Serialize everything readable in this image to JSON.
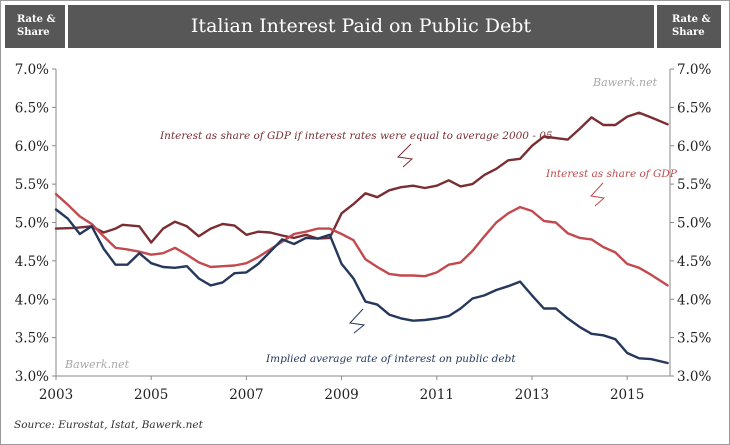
{
  "header": {
    "left_label": "Rate &\nShare",
    "title": "Italian Interest Paid on Public Debt",
    "right_label": "Rate &\nShare"
  },
  "watermarks": {
    "top": "Bawerk.net",
    "bottom": "Bawerk.net"
  },
  "source": "Source: Eurostat, Istat, Bawerk.net",
  "colors": {
    "dark_red": "#7a2e33",
    "red": "#c24a4f",
    "navy": "#25385c",
    "axis": "#8a8a8a",
    "header": "#575757"
  },
  "chart_data": {
    "type": "line",
    "xlim": [
      2003,
      2015.9
    ],
    "ylim": [
      3.0,
      7.0
    ],
    "x_ticks": [
      "2003",
      "2005",
      "2007",
      "2009",
      "2011",
      "2013",
      "2015"
    ],
    "y_ticks": [
      "3.0%",
      "3.5%",
      "4.0%",
      "4.5%",
      "5.0%",
      "5.5%",
      "6.0%",
      "6.5%",
      "7.0%"
    ],
    "grid": false,
    "annotations": [
      "Interest as share of GDP if interest rates were equal to average 2000 - 05",
      "Interest as share of GDP",
      "Implied average rate of interest  on public debt"
    ],
    "series": [
      {
        "color": "#7a2e33",
        "points": [
          [
            2003.0,
            4.92
          ],
          [
            2003.4,
            4.93
          ],
          [
            2003.75,
            4.95
          ],
          [
            2004.0,
            4.87
          ],
          [
            2004.25,
            4.92
          ],
          [
            2004.4,
            4.97
          ],
          [
            2004.75,
            4.95
          ],
          [
            2005.0,
            4.74
          ],
          [
            2005.25,
            4.92
          ],
          [
            2005.5,
            5.01
          ],
          [
            2005.75,
            4.95
          ],
          [
            2006.0,
            4.82
          ],
          [
            2006.25,
            4.92
          ],
          [
            2006.5,
            4.98
          ],
          [
            2006.75,
            4.96
          ],
          [
            2007.0,
            4.84
          ],
          [
            2007.25,
            4.88
          ],
          [
            2007.5,
            4.87
          ],
          [
            2007.75,
            4.83
          ],
          [
            2008.0,
            4.8
          ],
          [
            2008.25,
            4.84
          ],
          [
            2008.5,
            4.79
          ],
          [
            2008.75,
            4.8
          ],
          [
            2009.0,
            5.12
          ],
          [
            2009.25,
            5.24
          ],
          [
            2009.5,
            5.38
          ],
          [
            2009.75,
            5.33
          ],
          [
            2010.0,
            5.42
          ],
          [
            2010.25,
            5.46
          ],
          [
            2010.5,
            5.48
          ],
          [
            2010.75,
            5.45
          ],
          [
            2011.0,
            5.48
          ],
          [
            2011.25,
            5.55
          ],
          [
            2011.5,
            5.47
          ],
          [
            2011.75,
            5.5
          ],
          [
            2012.0,
            5.62
          ],
          [
            2012.25,
            5.7
          ],
          [
            2012.5,
            5.81
          ],
          [
            2012.75,
            5.83
          ],
          [
            2013.0,
            6.0
          ],
          [
            2013.25,
            6.12
          ],
          [
            2013.5,
            6.1
          ],
          [
            2013.75,
            6.08
          ],
          [
            2014.0,
            6.22
          ],
          [
            2014.25,
            6.37
          ],
          [
            2014.5,
            6.27
          ],
          [
            2014.75,
            6.27
          ],
          [
            2015.0,
            6.38
          ],
          [
            2015.25,
            6.43
          ],
          [
            2015.5,
            6.37
          ],
          [
            2015.85,
            6.28
          ]
        ]
      },
      {
        "color": "#c24a4f",
        "points": [
          [
            2003.0,
            5.37
          ],
          [
            2003.25,
            5.23
          ],
          [
            2003.5,
            5.08
          ],
          [
            2003.75,
            4.98
          ],
          [
            2004.0,
            4.82
          ],
          [
            2004.25,
            4.67
          ],
          [
            2004.5,
            4.65
          ],
          [
            2004.75,
            4.62
          ],
          [
            2005.0,
            4.58
          ],
          [
            2005.25,
            4.6
          ],
          [
            2005.5,
            4.67
          ],
          [
            2005.75,
            4.58
          ],
          [
            2006.0,
            4.48
          ],
          [
            2006.25,
            4.42
          ],
          [
            2006.5,
            4.43
          ],
          [
            2006.75,
            4.44
          ],
          [
            2007.0,
            4.47
          ],
          [
            2007.25,
            4.55
          ],
          [
            2007.5,
            4.65
          ],
          [
            2007.75,
            4.75
          ],
          [
            2008.0,
            4.85
          ],
          [
            2008.25,
            4.88
          ],
          [
            2008.5,
            4.92
          ],
          [
            2008.75,
            4.92
          ],
          [
            2009.0,
            4.85
          ],
          [
            2009.25,
            4.77
          ],
          [
            2009.5,
            4.52
          ],
          [
            2009.75,
            4.42
          ],
          [
            2010.0,
            4.33
          ],
          [
            2010.25,
            4.31
          ],
          [
            2010.5,
            4.31
          ],
          [
            2010.75,
            4.3
          ],
          [
            2011.0,
            4.35
          ],
          [
            2011.25,
            4.45
          ],
          [
            2011.5,
            4.48
          ],
          [
            2011.75,
            4.63
          ],
          [
            2012.0,
            4.82
          ],
          [
            2012.25,
            5.0
          ],
          [
            2012.5,
            5.12
          ],
          [
            2012.75,
            5.2
          ],
          [
            2013.0,
            5.15
          ],
          [
            2013.25,
            5.02
          ],
          [
            2013.5,
            5.0
          ],
          [
            2013.75,
            4.86
          ],
          [
            2014.0,
            4.8
          ],
          [
            2014.25,
            4.78
          ],
          [
            2014.5,
            4.68
          ],
          [
            2014.75,
            4.61
          ],
          [
            2015.0,
            4.46
          ],
          [
            2015.25,
            4.41
          ],
          [
            2015.5,
            4.32
          ],
          [
            2015.85,
            4.18
          ]
        ]
      },
      {
        "color": "#25385c",
        "points": [
          [
            2003.0,
            5.17
          ],
          [
            2003.25,
            5.05
          ],
          [
            2003.5,
            4.85
          ],
          [
            2003.75,
            4.95
          ],
          [
            2004.0,
            4.66
          ],
          [
            2004.25,
            4.45
          ],
          [
            2004.5,
            4.45
          ],
          [
            2004.75,
            4.6
          ],
          [
            2005.0,
            4.47
          ],
          [
            2005.25,
            4.42
          ],
          [
            2005.5,
            4.41
          ],
          [
            2005.75,
            4.43
          ],
          [
            2006.0,
            4.27
          ],
          [
            2006.25,
            4.18
          ],
          [
            2006.5,
            4.22
          ],
          [
            2006.75,
            4.34
          ],
          [
            2007.0,
            4.35
          ],
          [
            2007.25,
            4.46
          ],
          [
            2007.5,
            4.62
          ],
          [
            2007.75,
            4.78
          ],
          [
            2008.0,
            4.72
          ],
          [
            2008.25,
            4.8
          ],
          [
            2008.5,
            4.79
          ],
          [
            2008.75,
            4.84
          ],
          [
            2009.0,
            4.46
          ],
          [
            2009.25,
            4.27
          ],
          [
            2009.5,
            3.97
          ],
          [
            2009.75,
            3.93
          ],
          [
            2010.0,
            3.8
          ],
          [
            2010.25,
            3.75
          ],
          [
            2010.5,
            3.72
          ],
          [
            2010.75,
            3.73
          ],
          [
            2011.0,
            3.75
          ],
          [
            2011.25,
            3.78
          ],
          [
            2011.5,
            3.88
          ],
          [
            2011.75,
            4.01
          ],
          [
            2012.0,
            4.05
          ],
          [
            2012.25,
            4.12
          ],
          [
            2012.5,
            4.17
          ],
          [
            2012.75,
            4.23
          ],
          [
            2013.0,
            4.05
          ],
          [
            2013.25,
            3.88
          ],
          [
            2013.5,
            3.88
          ],
          [
            2013.75,
            3.75
          ],
          [
            2014.0,
            3.64
          ],
          [
            2014.25,
            3.55
          ],
          [
            2014.5,
            3.53
          ],
          [
            2014.75,
            3.48
          ],
          [
            2015.0,
            3.3
          ],
          [
            2015.25,
            3.23
          ],
          [
            2015.5,
            3.22
          ],
          [
            2015.85,
            3.17
          ]
        ]
      }
    ]
  }
}
